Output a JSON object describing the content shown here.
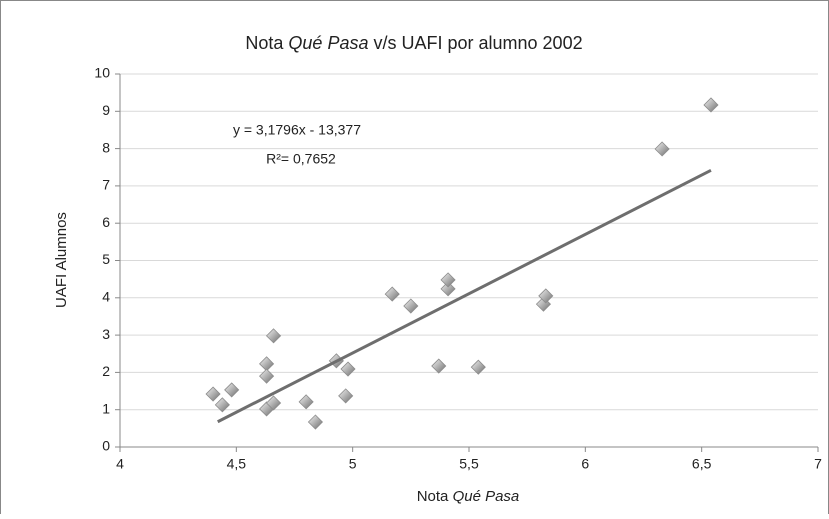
{
  "chart_data": {
    "type": "scatter",
    "title": [
      "Nota ",
      "Qué Pasa",
      " v/s UAFI por alumno 2002"
    ],
    "x_label": [
      "Nota ",
      "Qué Pasa"
    ],
    "y_label": "UAFI Alumnos",
    "annotations": [
      "y = 3,1796x - 13,377",
      "R²= 0,7652"
    ],
    "xlim": [
      4,
      7
    ],
    "ylim": [
      0,
      10
    ],
    "xticks": [
      4,
      {
        "value": 4.5,
        "label": "4,5"
      },
      5,
      {
        "value": 5.5,
        "label": "5,5"
      },
      6,
      {
        "value": 6.5,
        "label": "6,5"
      },
      7
    ],
    "yticks": [
      0,
      1,
      2,
      3,
      4,
      5,
      6,
      7,
      8,
      9,
      10
    ],
    "grid": true,
    "color": "#8c8c8c",
    "x": [
      4.4,
      4.44,
      4.48,
      4.63,
      4.63,
      4.63,
      4.66,
      4.66,
      4.8,
      4.84,
      4.93,
      4.98,
      4.97,
      5.17,
      5.25,
      5.37,
      5.41,
      5.41,
      5.54,
      5.82,
      5.83,
      6.33,
      6.54
    ],
    "values": [
      1.42,
      1.13,
      1.53,
      2.23,
      1.9,
      1.02,
      1.18,
      2.98,
      1.21,
      0.67,
      2.31,
      2.09,
      1.37,
      4.1,
      3.78,
      2.17,
      4.24,
      4.48,
      2.14,
      3.83,
      4.05,
      7.99,
      9.17
    ],
    "trendline": {
      "color": "#6e6e6e",
      "x": [
        4.42,
        6.54
      ],
      "values": [
        0.677,
        7.418
      ]
    }
  }
}
